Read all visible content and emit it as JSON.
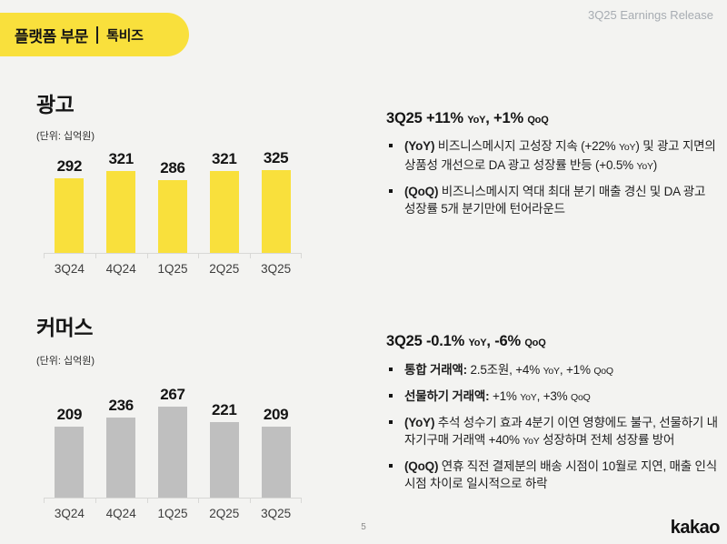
{
  "header": {
    "badge": {
      "title": "플랫폼 부문",
      "subtitle": "톡비즈"
    },
    "release_label": "3Q25 Earnings Release"
  },
  "colors": {
    "background": "#F3F3F1",
    "badge_yellow": "#F9E03C",
    "bar_yellow": "#F9E03C",
    "bar_gray": "#BFBFBF",
    "axis_line": "#D8D8D6",
    "release_label_gray": "#A7ACB2",
    "page_number_gray": "#8A8A8A",
    "text_dark": "#161616"
  },
  "sections": [
    {
      "id": "advertising",
      "title": "광고",
      "unit_label": "(단위: 십억원)",
      "headline": [
        {
          "t": "3Q25 +11% "
        },
        {
          "t": "YoY",
          "s": true
        },
        {
          "t": ", +1% "
        },
        {
          "t": "QoQ",
          "s": true
        }
      ],
      "bullets": [
        [
          {
            "t": "(YoY) ",
            "b": true
          },
          {
            "t": "비즈니스메시지 고성장 지속 (+22% "
          },
          {
            "t": "YoY",
            "s": true
          },
          {
            "t": ") 및 광고 지면의 상품성 개선으로 DA 광고 성장률 반등 (+0.5% "
          },
          {
            "t": "YoY",
            "s": true
          },
          {
            "t": ")"
          }
        ],
        [
          {
            "t": "(QoQ) ",
            "b": true
          },
          {
            "t": "비즈니스메시지 역대 최대 분기 매출 경신 및 DA 광고 성장률 5개 분기만에 턴어라운드"
          }
        ]
      ]
    },
    {
      "id": "commerce",
      "title": "커머스",
      "unit_label": "(단위: 십억원)",
      "headline": [
        {
          "t": "3Q25 -0.1% "
        },
        {
          "t": "YoY",
          "s": true
        },
        {
          "t": ", -6% "
        },
        {
          "t": "QoQ",
          "s": true
        }
      ],
      "bullets": [
        [
          {
            "t": "통합 거래액:",
            "b": true
          },
          {
            "t": " 2.5조원, +4% "
          },
          {
            "t": "YoY",
            "s": true
          },
          {
            "t": ", +1% "
          },
          {
            "t": "QoQ",
            "s": true
          }
        ],
        [
          {
            "t": "선물하기 거래액:",
            "b": true
          },
          {
            "t": " +1% "
          },
          {
            "t": "YoY",
            "s": true
          },
          {
            "t": ", +3% "
          },
          {
            "t": "QoQ",
            "s": true
          }
        ],
        [
          {
            "t": "(YoY) ",
            "b": true
          },
          {
            "t": "추석 성수기 효과 4분기 이연 영향에도 불구, 선물하기 내 자기구매 거래액 +40% "
          },
          {
            "t": "YoY",
            "s": true
          },
          {
            "t": " 성장하며 전체 성장률 방어"
          }
        ],
        [
          {
            "t": "(QoQ) ",
            "b": true
          },
          {
            "t": "연휴 직전 결제분의 배송 시점이 10월로 지연, 매출 인식 시점 차이로 일시적으로 하락"
          }
        ]
      ]
    }
  ],
  "chart_data": [
    {
      "type": "bar",
      "title": "광고",
      "unit": "십억원",
      "categories": [
        "3Q24",
        "4Q24",
        "1Q25",
        "2Q25",
        "3Q25"
      ],
      "values": [
        292,
        321,
        286,
        321,
        325
      ],
      "bar_color": "#F9E03C",
      "ylim": [
        0,
        325
      ],
      "grid": false,
      "value_labels": true
    },
    {
      "type": "bar",
      "title": "커머스",
      "unit": "십억원",
      "categories": [
        "3Q24",
        "4Q24",
        "1Q25",
        "2Q25",
        "3Q25"
      ],
      "values": [
        209,
        236,
        267,
        221,
        209
      ],
      "bar_color": "#BFBFBF",
      "ylim": [
        0,
        267
      ],
      "grid": false,
      "value_labels": true
    }
  ],
  "footer": {
    "page_number": "5",
    "logo": "kakao"
  }
}
